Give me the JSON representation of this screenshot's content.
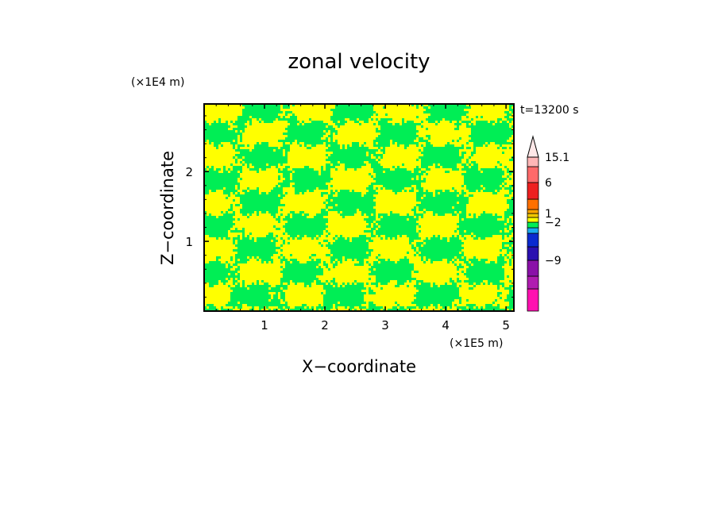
{
  "chart_data": {
    "type": "heatmap",
    "title": "zonal velocity",
    "xlabel": "X−coordinate",
    "ylabel": "Z−coordinate",
    "x_scale_label": "(×1E5 m)",
    "y_scale_label": "(×1E4 m)",
    "time_stamp": "t=13200 s",
    "xlim": [
      0,
      5.13
    ],
    "ylim": [
      0,
      2.97
    ],
    "x_ticks": [
      1,
      2,
      3,
      4,
      5
    ],
    "x_tick_labels": [
      "1",
      "2",
      "3",
      "4",
      "5"
    ],
    "y_ticks": [
      1,
      2
    ],
    "y_tick_labels": [
      "1",
      "2"
    ],
    "field_colors": {
      "positive_weak": "#ffff00",
      "negative_weak": "#00ee55"
    },
    "colorbar": {
      "levels": [
        {
          "color": "#ff10b0"
        },
        {
          "color": "#b01cb0"
        },
        {
          "color": "#8a10a8"
        },
        {
          "color": "#2a10b0"
        },
        {
          "color": "#0a2ad0"
        },
        {
          "color": "#1aaaee"
        },
        {
          "color": "#00ee55"
        },
        {
          "color": "#ffff00"
        },
        {
          "color": "#f0c800"
        },
        {
          "color": "#ffa500"
        },
        {
          "color": "#ff7000"
        },
        {
          "color": "#ee2020"
        },
        {
          "color": "#ff6a6a"
        },
        {
          "color": "#ffb6b6"
        }
      ],
      "extend_color": "#ffe8e8",
      "tick_labels": [
        {
          "label": "15.1",
          "value": 15.1
        },
        {
          "label": "6",
          "value": 6
        },
        {
          "label": "1",
          "value": 1
        },
        {
          "label": "−2",
          "value": -2
        },
        {
          "label": "−9",
          "value": -9
        }
      ]
    }
  }
}
